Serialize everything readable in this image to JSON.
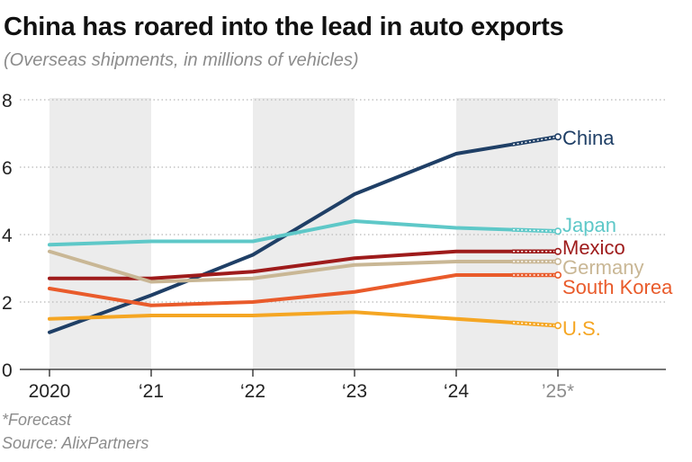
{
  "chart_data": {
    "type": "line",
    "title": "China has roared into the lead in auto exports",
    "subtitle": "(Overseas shipments, in millions of vehicles)",
    "x": [
      "2020",
      "‘21",
      "‘22",
      "‘23",
      "‘24",
      "’25*"
    ],
    "forecast_from_index": 4,
    "ylim": [
      0,
      8
    ],
    "yticks": [
      0,
      2,
      4,
      6,
      8
    ],
    "grid": true,
    "shaded_bands": [
      [
        0,
        1
      ],
      [
        2,
        3
      ],
      [
        4,
        5
      ]
    ],
    "series": [
      {
        "name": "China",
        "color": "#1f3f66",
        "values": [
          1.1,
          2.2,
          3.4,
          5.2,
          6.4,
          6.9
        ]
      },
      {
        "name": "Japan",
        "color": "#5ec8c8",
        "values": [
          3.7,
          3.8,
          3.8,
          4.4,
          4.2,
          4.1
        ]
      },
      {
        "name": "Mexico",
        "color": "#9e1b1b",
        "values": [
          2.7,
          2.7,
          2.9,
          3.3,
          3.5,
          3.5
        ]
      },
      {
        "name": "Germany",
        "color": "#c9b795",
        "values": [
          3.5,
          2.6,
          2.7,
          3.1,
          3.2,
          3.2
        ]
      },
      {
        "name": "South Korea",
        "color": "#e95b2b",
        "values": [
          2.4,
          1.9,
          2.0,
          2.3,
          2.8,
          2.8
        ]
      },
      {
        "name": "U.S.",
        "color": "#f5a623",
        "values": [
          1.5,
          1.6,
          1.6,
          1.7,
          1.5,
          1.3
        ]
      }
    ],
    "footnote": "*Forecast",
    "source": "Source: AlixPartners"
  }
}
